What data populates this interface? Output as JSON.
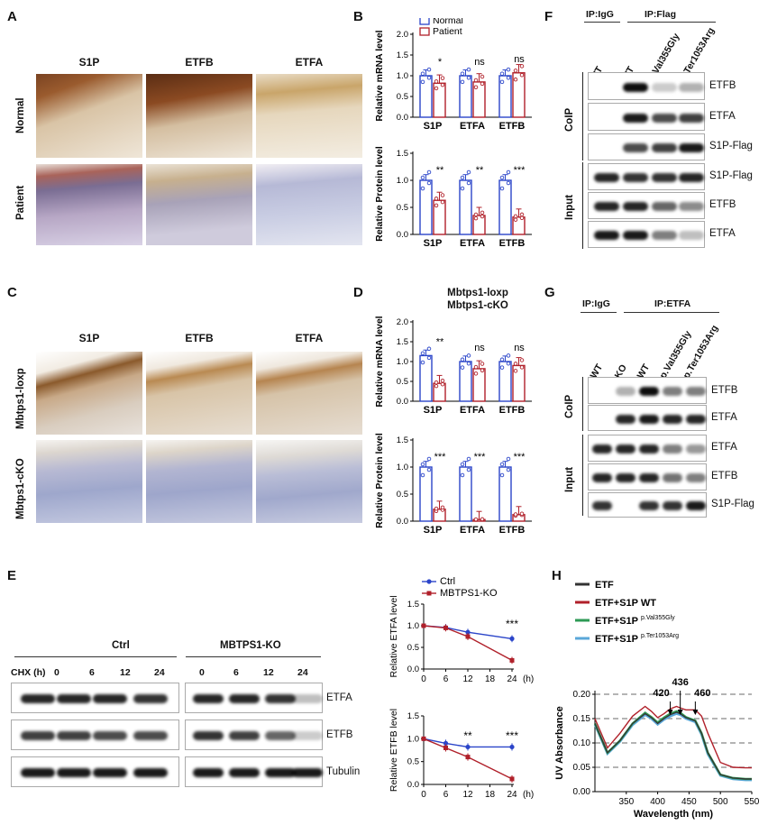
{
  "panels": {
    "A": "A",
    "B": "B",
    "C": "C",
    "D": "D",
    "E": "E",
    "F": "F",
    "G": "G",
    "H": "H"
  },
  "panelA": {
    "cols": [
      "S1P",
      "ETFB",
      "ETFA"
    ],
    "rows": [
      "Normal",
      "Patient"
    ]
  },
  "panelC": {
    "cols": [
      "S1P",
      "ETFB",
      "ETFA"
    ],
    "rows": [
      "Mbtps1-loxp",
      "Mbtps1-cKO"
    ]
  },
  "panelD": {
    "title1": "Mbtps1-loxp",
    "title2": "Mbtps1-cKO"
  },
  "panelE": {
    "groups": [
      "Ctrl",
      "MBTPS1-KO"
    ],
    "chx_label": "CHX (h)",
    "times": [
      "0",
      "6",
      "12",
      "24"
    ],
    "bands": [
      "ETFA",
      "ETFB",
      "Tubulin"
    ]
  },
  "panelF": {
    "ip_igg": "IP:IgG",
    "ip_main": "IP:Flag",
    "lanes": [
      "WT",
      "WT",
      "p.Val355Gly",
      "p.Ter1053Arg"
    ],
    "sections": [
      "CoIP",
      "Input"
    ],
    "bands": [
      "ETFB",
      "ETFA",
      "S1P-Flag",
      "S1P-Flag",
      "ETFB",
      "ETFA"
    ]
  },
  "panelG": {
    "ip_igg": "IP:IgG",
    "ip_main": "IP:ETFA",
    "lanes": [
      "WT",
      "KO",
      "WT",
      "p.Val355Gly",
      "p.Ter1053Arg"
    ],
    "sections": [
      "CoIP",
      "Input"
    ],
    "bands": [
      "ETFB",
      "ETFA",
      "ETFA",
      "ETFB",
      "S1P-Flag"
    ]
  },
  "colors": {
    "blue": "#2b45c9",
    "red": "#b0202a",
    "green": "#2e9a55",
    "lightblue": "#5aa7d8",
    "black": "#333333"
  },
  "chart_data": [
    {
      "id": "B-mRNA",
      "type": "bar",
      "categories": [
        "S1P",
        "ETFA",
        "ETFB"
      ],
      "ylabel": "Relative  mRNA  level",
      "ylim": [
        0,
        2.0
      ],
      "yticks": [
        "0.0",
        "0.5",
        "1.0",
        "1.5",
        "2.0"
      ],
      "legend": [
        "Normal",
        "Patient"
      ],
      "series": [
        {
          "name": "Normal",
          "values": [
            1.0,
            1.0,
            1.0
          ]
        },
        {
          "name": "Patient",
          "values": [
            0.82,
            0.85,
            1.07
          ]
        }
      ],
      "significance": [
        "*",
        "ns",
        "ns"
      ]
    },
    {
      "id": "B-protein",
      "type": "bar",
      "categories": [
        "S1P",
        "ETFA",
        "ETFB"
      ],
      "ylabel": "Relative  Protein  level",
      "ylim": [
        0,
        1.5
      ],
      "yticks": [
        "0.0",
        "0.5",
        "1.0",
        "1.5"
      ],
      "series": [
        {
          "name": "Normal",
          "values": [
            1.0,
            1.0,
            1.0
          ]
        },
        {
          "name": "Patient",
          "values": [
            0.63,
            0.35,
            0.32
          ]
        }
      ],
      "significance": [
        "**",
        "**",
        "***"
      ]
    },
    {
      "id": "D-mRNA",
      "type": "bar",
      "categories": [
        "S1P",
        "ETFA",
        "ETFB"
      ],
      "ylabel": "Relative  mRNA  level",
      "ylim": [
        0,
        2.0
      ],
      "yticks": [
        "0.0",
        "0.5",
        "1.0",
        "1.5",
        "2.0"
      ],
      "series": [
        {
          "name": "Mbtps1-loxp",
          "values": [
            1.15,
            1.0,
            1.0
          ]
        },
        {
          "name": "Mbtps1-cKO",
          "values": [
            0.45,
            0.82,
            0.9
          ]
        }
      ],
      "significance": [
        "**",
        "ns",
        "ns"
      ]
    },
    {
      "id": "D-protein",
      "type": "bar",
      "categories": [
        "S1P",
        "ETFA",
        "ETFB"
      ],
      "ylabel": "Relative  Protein  level",
      "ylim": [
        0,
        1.5
      ],
      "yticks": [
        "0.0",
        "0.5",
        "1.0",
        "1.5"
      ],
      "series": [
        {
          "name": "Mbtps1-loxp",
          "values": [
            1.0,
            1.0,
            1.0
          ]
        },
        {
          "name": "Mbtps1-cKO",
          "values": [
            0.22,
            0.03,
            0.12
          ]
        }
      ],
      "significance": [
        "***",
        "***",
        "***"
      ]
    },
    {
      "id": "E-ETFA",
      "type": "line",
      "ylabel": "Relative ETFA level",
      "x": [
        0,
        6,
        12,
        18,
        24
      ],
      "xunit": "(h)",
      "xlim": [
        0,
        24
      ],
      "ylim": [
        0,
        1.5
      ],
      "yticks": [
        "0.0",
        "0.5",
        "1.0",
        "1.5"
      ],
      "legend": [
        "Ctrl",
        "MBTPS1-KO"
      ],
      "series": [
        {
          "name": "Ctrl",
          "x": [
            0,
            6,
            12,
            24
          ],
          "values": [
            1.0,
            0.96,
            0.85,
            0.7
          ]
        },
        {
          "name": "MBTPS1-KO",
          "x": [
            0,
            6,
            12,
            24
          ],
          "values": [
            1.0,
            0.95,
            0.75,
            0.2
          ]
        }
      ],
      "significance": [
        {
          "x": 24,
          "label": "***"
        }
      ]
    },
    {
      "id": "E-ETFB",
      "type": "line",
      "ylabel": "Relative ETFB level",
      "x": [
        0,
        6,
        12,
        18,
        24
      ],
      "xunit": "(h)",
      "xlim": [
        0,
        24
      ],
      "ylim": [
        0,
        1.5
      ],
      "yticks": [
        "0.0",
        "0.5",
        "1.0",
        "1.5"
      ],
      "series": [
        {
          "name": "Ctrl",
          "x": [
            0,
            6,
            12,
            24
          ],
          "values": [
            1.0,
            0.9,
            0.82,
            0.82
          ]
        },
        {
          "name": "MBTPS1-KO",
          "x": [
            0,
            6,
            12,
            24
          ],
          "values": [
            1.0,
            0.8,
            0.6,
            0.12
          ]
        }
      ],
      "significance": [
        {
          "x": 12,
          "label": "**"
        },
        {
          "x": 24,
          "label": "***"
        }
      ]
    },
    {
      "id": "H",
      "type": "line",
      "xlabel": "Wavelength (nm)",
      "ylabel": "UV Absorbance",
      "xlim": [
        300,
        550
      ],
      "xticks": [
        350,
        400,
        450,
        500,
        550
      ],
      "ylim": [
        0,
        0.2
      ],
      "yticks": [
        "0.00",
        "0.05",
        "0.10",
        "0.15",
        "0.20"
      ],
      "grid_dashed_y": [
        0.05,
        0.1,
        0.15,
        0.2
      ],
      "peaks": [
        {
          "x": 420,
          "label": "420"
        },
        {
          "x": 436,
          "label": "436"
        },
        {
          "x": 460,
          "label": "460"
        }
      ],
      "x": [
        300,
        320,
        340,
        360,
        380,
        390,
        400,
        410,
        420,
        430,
        436,
        445,
        460,
        470,
        480,
        500,
        520,
        540,
        550
      ],
      "series": [
        {
          "name": "ETF",
          "values": [
            0.14,
            0.08,
            0.105,
            0.14,
            0.16,
            0.152,
            0.14,
            0.15,
            0.158,
            0.163,
            0.16,
            0.152,
            0.145,
            0.12,
            0.08,
            0.035,
            0.028,
            0.026,
            0.026
          ]
        },
        {
          "name": "ETF+S1P WT",
          "values": [
            0.15,
            0.09,
            0.12,
            0.155,
            0.175,
            0.165,
            0.152,
            0.16,
            0.17,
            0.175,
            0.172,
            0.168,
            0.168,
            0.155,
            0.12,
            0.06,
            0.05,
            0.049,
            0.049
          ]
        },
        {
          "name": "ETF+S1P p.Val355Gly",
          "values": [
            0.14,
            0.08,
            0.105,
            0.14,
            0.162,
            0.153,
            0.142,
            0.152,
            0.16,
            0.165,
            0.162,
            0.153,
            0.146,
            0.12,
            0.08,
            0.035,
            0.028,
            0.026,
            0.026
          ]
        },
        {
          "name": "ETF+S1P p.Ter1053Arg",
          "values": [
            0.138,
            0.078,
            0.103,
            0.137,
            0.158,
            0.15,
            0.138,
            0.148,
            0.155,
            0.16,
            0.158,
            0.15,
            0.143,
            0.117,
            0.077,
            0.033,
            0.026,
            0.024,
            0.024
          ]
        }
      ],
      "legend_labels": [
        {
          "base": "ETF",
          "sup": ""
        },
        {
          "base": "ETF+S1P WT",
          "sup": ""
        },
        {
          "base": "ETF+S1P",
          "sup": "p.Val355Gly"
        },
        {
          "base": "ETF+S1P",
          "sup": "p.Ter1053Arg"
        }
      ]
    }
  ]
}
